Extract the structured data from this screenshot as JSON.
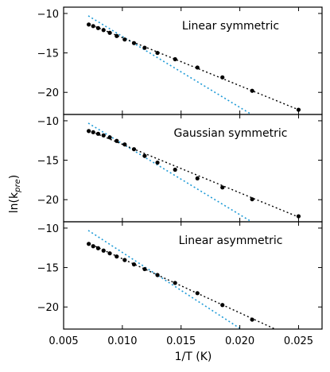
{
  "chart_data": {
    "type": "scatter",
    "xlabel": "1/T (K)",
    "ylabel": "ln(k_pre)",
    "ylabel_base": "ln(k",
    "ylabel_sub": "pre",
    "ylabel_close": ")",
    "xlim": [
      0.005,
      0.027
    ],
    "ylim": [
      -22.8,
      -9.2
    ],
    "xticks": [
      0.005,
      0.01,
      0.015,
      0.02,
      0.025
    ],
    "xtick_labels": [
      "0.005",
      "0.010",
      "0.015",
      "0.020",
      "0.025"
    ],
    "yticks": [
      -10,
      -15,
      -20
    ],
    "ytick_labels": [
      "−10",
      "−15",
      "−20"
    ],
    "colors": {
      "points": "#000000",
      "fit_line": "#000000",
      "reference_line": "#1f9bd7"
    },
    "grid": false,
    "panels": [
      {
        "title": "Linear symmetric",
        "x": [
          0.00714,
          0.00752,
          0.00794,
          0.0084,
          0.00893,
          0.00952,
          0.0102,
          0.01099,
          0.0119,
          0.01299,
          0.01449,
          0.01639,
          0.01852,
          0.02105,
          0.025
        ],
        "y": [
          -11.4,
          -11.6,
          -11.85,
          -12.1,
          -12.45,
          -12.85,
          -13.3,
          -13.75,
          -14.35,
          -15.0,
          -15.8,
          -16.85,
          -18.1,
          -19.8,
          -22.2
        ],
        "fit_line": {
          "x": [
            0.0071,
            0.025
          ],
          "y": [
            -11.3,
            -22.2
          ]
        },
        "reference_line": {
          "x": [
            0.0071,
            0.021
          ],
          "y": [
            -10.3,
            -22.8
          ]
        }
      },
      {
        "title": "Gaussian symmetric",
        "x": [
          0.00714,
          0.00752,
          0.00794,
          0.0084,
          0.00893,
          0.00952,
          0.0102,
          0.01099,
          0.0119,
          0.01299,
          0.01449,
          0.01639,
          0.01852,
          0.02105,
          0.025
        ],
        "y": [
          -11.3,
          -11.45,
          -11.65,
          -11.85,
          -12.1,
          -12.55,
          -13.0,
          -13.6,
          -14.45,
          -15.3,
          -16.2,
          -17.3,
          -18.45,
          -19.95,
          -22.1
        ],
        "fit_line": {
          "x": [
            0.0071,
            0.025
          ],
          "y": [
            -11.2,
            -22.2
          ]
        },
        "reference_line": {
          "x": [
            0.0071,
            0.021
          ],
          "y": [
            -10.3,
            -22.8
          ]
        }
      },
      {
        "title": "Linear asymmetric",
        "x": [
          0.00714,
          0.00752,
          0.00794,
          0.0084,
          0.00893,
          0.00952,
          0.0102,
          0.01099,
          0.0119,
          0.01299,
          0.01449,
          0.01639,
          0.01852,
          0.02105
        ],
        "y": [
          -12.0,
          -12.3,
          -12.55,
          -12.85,
          -13.2,
          -13.6,
          -14.05,
          -14.6,
          -15.2,
          -15.95,
          -16.95,
          -18.25,
          -19.75,
          -21.6
        ],
        "fit_line": {
          "x": [
            0.0071,
            0.023
          ],
          "y": [
            -11.9,
            -22.8
          ]
        },
        "reference_line": {
          "x": [
            0.0071,
            0.0201
          ],
          "y": [
            -10.3,
            -22.8
          ]
        }
      }
    ]
  }
}
